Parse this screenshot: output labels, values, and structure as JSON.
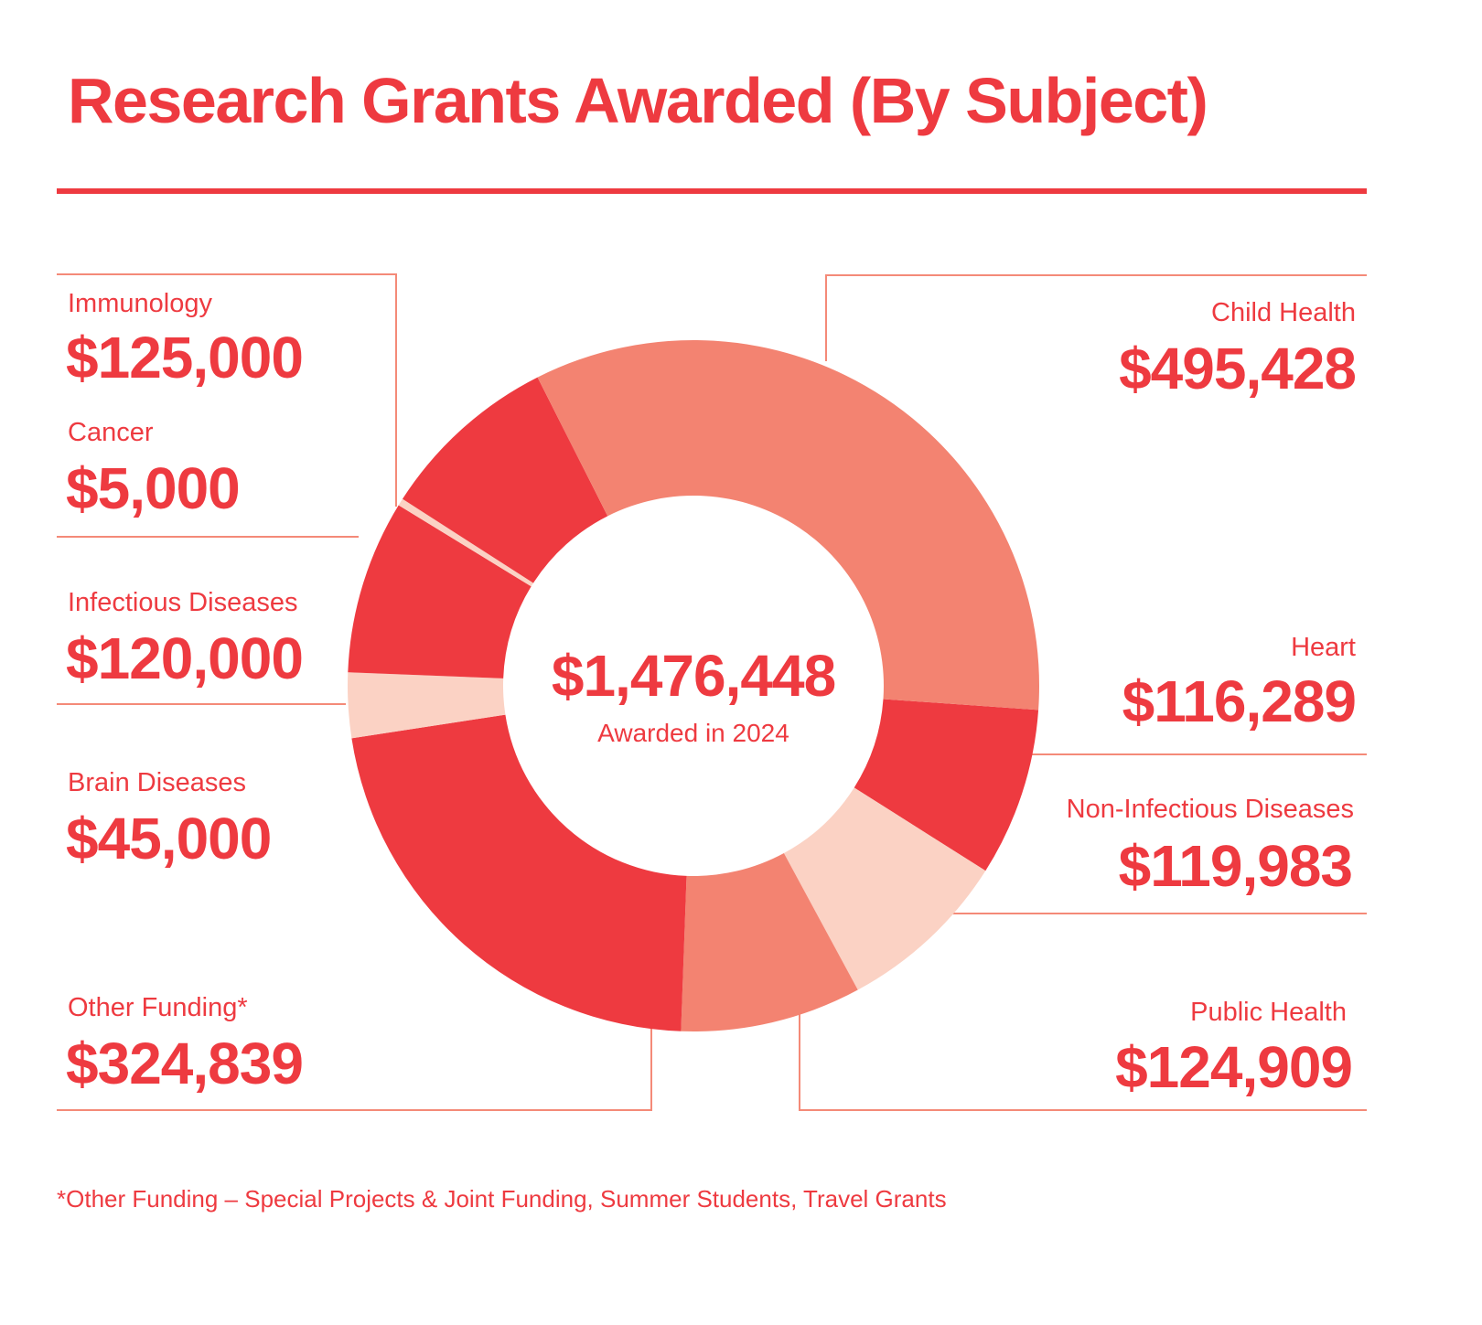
{
  "chart_data": {
    "type": "pie",
    "variant": "donut",
    "title": "Research Grants Awarded (By Subject)",
    "center_total": "$1,476,448",
    "center_subtitle": "Awarded in 2024",
    "footnote": "*Other Funding – Special Projects & Joint Funding, Summer Students, Travel Grants",
    "colors": {
      "red": "#ee3a40",
      "salmon": "#f38371",
      "pale": "#fbd2c4",
      "rule": "#f48a78"
    },
    "slices": [
      {
        "label": "Heart",
        "value": 116289,
        "display": "$116,289",
        "color": "#ee3a40"
      },
      {
        "label": "Non-Infectious Diseases",
        "value": 119983,
        "display": "$119,983",
        "color": "#fbd2c4"
      },
      {
        "label": "Public Health",
        "value": 124909,
        "display": "$124,909",
        "color": "#f38371"
      },
      {
        "label": "Other Funding*",
        "value": 324839,
        "display": "$324,839",
        "color": "#ee3a40"
      },
      {
        "label": "Brain Diseases",
        "value": 45000,
        "display": "$45,000",
        "color": "#fbd2c4"
      },
      {
        "label": "Infectious Diseases",
        "value": 120000,
        "display": "$120,000",
        "color": "#ee3a40"
      },
      {
        "label": "Cancer",
        "value": 5000,
        "display": "$5,000",
        "color": "#fbd2c4"
      },
      {
        "label": "Immunology",
        "value": 125000,
        "display": "$125,000",
        "color": "#ee3a40"
      },
      {
        "label": "Child Health",
        "value": 495428,
        "display": "$495,428",
        "color": "#f38371"
      }
    ]
  }
}
